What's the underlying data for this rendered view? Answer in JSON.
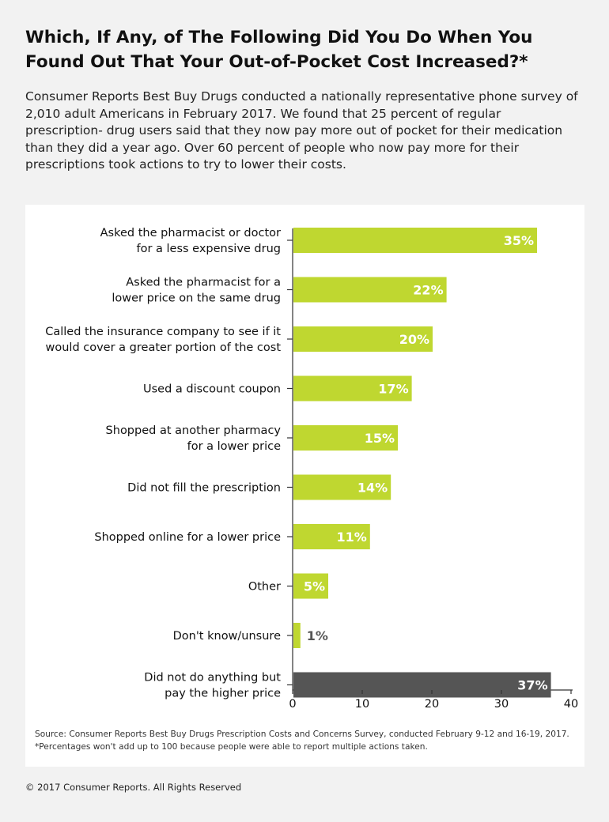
{
  "header": {
    "title": "Which, If Any, of The Following Did You Do When You Found Out That Your Out-of-Pocket Cost Increased?*",
    "intro": "Consumer Reports Best Buy Drugs conducted a nationally representative phone survey of 2,010 adult Americans in February 2017. We found that 25 percent of regular prescription- drug users said that they now pay more out of pocket for their medication than they did a year ago. Over 60 percent of people who now pay more for their prescriptions took actions to try to lower their costs."
  },
  "chart_data": {
    "type": "bar",
    "orientation": "horizontal",
    "categories": [
      [
        "Asked the pharmacist or doctor",
        "for a less expensive drug"
      ],
      [
        "Asked the pharmacist for a",
        "lower price on the same drug"
      ],
      [
        "Called the insurance company to see if it",
        "would cover a greater portion of the cost"
      ],
      [
        "Used a discount coupon"
      ],
      [
        "Shopped at another pharmacy",
        "for a lower price"
      ],
      [
        "Did not fill the prescription"
      ],
      [
        "Shopped online for a lower price"
      ],
      [
        "Other"
      ],
      [
        "Don't know/unsure"
      ],
      [
        "Did not do anything but",
        "pay the higher price"
      ]
    ],
    "values": [
      35,
      22,
      20,
      17,
      15,
      14,
      11,
      5,
      1,
      37
    ],
    "value_labels": [
      "35%",
      "22%",
      "20%",
      "17%",
      "15%",
      "14%",
      "11%",
      "5%",
      "1%",
      "37%"
    ],
    "bar_colors": [
      "#bfd730",
      "#bfd730",
      "#bfd730",
      "#bfd730",
      "#bfd730",
      "#bfd730",
      "#bfd730",
      "#bfd730",
      "#bfd730",
      "#555555"
    ],
    "xlim": [
      0,
      40
    ],
    "xticks": [
      0,
      10,
      20,
      30,
      40
    ],
    "grid": false
  },
  "footer": {
    "source": "Source: Consumer Reports Best Buy Drugs Prescription Costs and Concerns Survey, conducted February 9-12 and 16-19, 2017. *Percentages won't add up to 100 because people were able to report multiple actions taken.",
    "copyright": "© 2017 Consumer Reports. All Rights Reserved"
  }
}
